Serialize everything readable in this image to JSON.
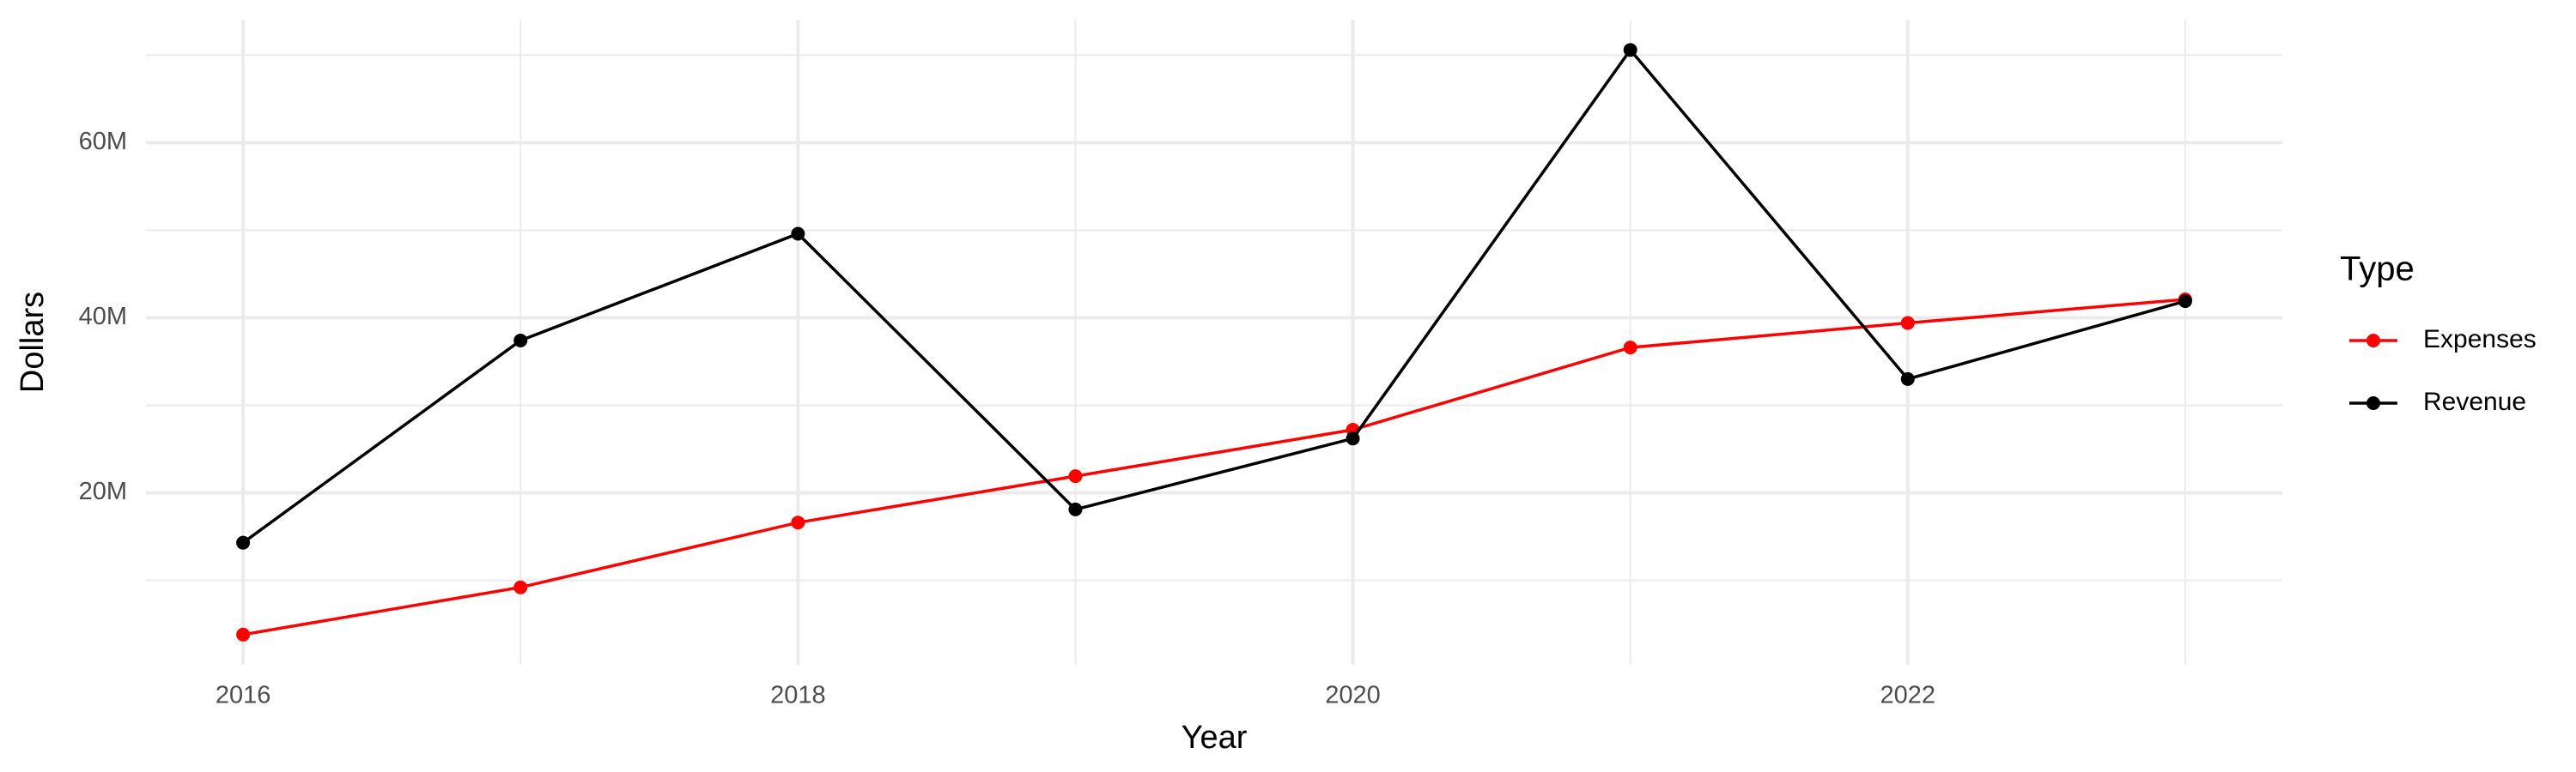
{
  "chart_data": {
    "type": "line",
    "x_label": "Year",
    "y_label": "Dollars",
    "x": [
      2016,
      2017,
      2018,
      2019,
      2020,
      2021,
      2022,
      2023
    ],
    "series": [
      {
        "name": "Expenses",
        "color": "#ff0000",
        "values": [
          3.8,
          9.2,
          16.6,
          21.9,
          27.2,
          36.6,
          39.4,
          42.1
        ]
      },
      {
        "name": "Revenue",
        "color": "#000000",
        "values": [
          14.3,
          37.4,
          49.6,
          18.1,
          26.2,
          70.6,
          33.0,
          41.9
        ]
      }
    ],
    "xlim": [
      2015.65,
      2023.35
    ],
    "xticks": [
      2016,
      2018,
      2020,
      2022
    ],
    "minor_xticks": [
      2017,
      2019,
      2021,
      2023
    ],
    "ylim": [
      0.35,
      74.05
    ],
    "yticks": [
      {
        "value": 20,
        "label": "20M"
      },
      {
        "value": 40,
        "label": "40M"
      },
      {
        "value": 60,
        "label": "60M"
      }
    ],
    "minor_yticks": [
      10,
      30,
      50,
      70
    ],
    "grid": true,
    "legend_title": "Type",
    "legend_position": "right"
  }
}
